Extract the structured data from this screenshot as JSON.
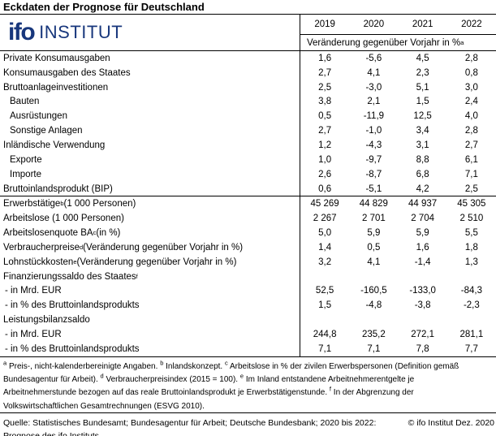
{
  "title": "Eckdaten der Prognose für Deutschland",
  "logo": {
    "brand": "ifo",
    "suffix": "INSTITUT",
    "color": "#18377C"
  },
  "table": {
    "years": [
      "2019",
      "2020",
      "2021",
      "2022"
    ],
    "unit_note": "Veränderung gegenüber Vorjahr in %^a",
    "rows": [
      {
        "label": "Private Konsumausgaben",
        "indent": 0,
        "values": [
          "1,6",
          "-5,6",
          "4,5",
          "2,8"
        ]
      },
      {
        "label": "Konsumausgaben des Staates",
        "indent": 0,
        "values": [
          "2,7",
          "4,1",
          "2,3",
          "0,8"
        ]
      },
      {
        "label": "Bruttoanlageinvestitionen",
        "indent": 0,
        "values": [
          "2,5",
          "-3,0",
          "5,1",
          "3,0"
        ]
      },
      {
        "label": "Bauten",
        "indent": 1,
        "values": [
          "3,8",
          "2,1",
          "1,5",
          "2,4"
        ]
      },
      {
        "label": "Ausrüstungen",
        "indent": 1,
        "values": [
          "0,5",
          "-11,9",
          "12,5",
          "4,0"
        ]
      },
      {
        "label": "Sonstige Anlagen",
        "indent": 1,
        "values": [
          "2,7",
          "-1,0",
          "3,4",
          "2,8"
        ]
      },
      {
        "label": "Inländische Verwendung",
        "indent": 0,
        "values": [
          "1,2",
          "-4,3",
          "3,1",
          "2,7"
        ]
      },
      {
        "label": "Exporte",
        "indent": 1,
        "values": [
          "1,0",
          "-9,7",
          "8,8",
          "6,1"
        ]
      },
      {
        "label": "Importe",
        "indent": 1,
        "values": [
          "2,6",
          "-8,7",
          "6,8",
          "7,1"
        ]
      },
      {
        "label": "Bruttoinlandsprodukt (BIP)",
        "indent": 0,
        "values": [
          "0,6",
          "-5,1",
          "4,2",
          "2,5"
        ],
        "rule_below": true
      },
      {
        "label": "Erwerbstätige^b (1 000 Personen)",
        "indent": 0,
        "values": [
          "45 269",
          "44 829",
          "44 937",
          "45 305"
        ]
      },
      {
        "label": "Arbeitslose (1 000 Personen)",
        "indent": 0,
        "values": [
          "2 267",
          "2 701",
          "2 704",
          "2 510"
        ]
      },
      {
        "label": "Arbeitslosenquote BA^c (in %)",
        "indent": 0,
        "values": [
          "5,0",
          "5,9",
          "5,9",
          "5,5"
        ]
      },
      {
        "label": "Verbraucherpreise^d (Veränderung gegenüber Vorjahr in %)",
        "indent": 0,
        "values": [
          "1,4",
          "0,5",
          "1,6",
          "1,8"
        ]
      },
      {
        "label": "Lohnstückkosten^e (Veränderung gegenüber Vorjahr in %)",
        "indent": 0,
        "values": [
          "3,2",
          "4,1",
          "-1,4",
          "1,3"
        ]
      },
      {
        "label": "Finanzierungssaldo des Staates^f",
        "indent": 0,
        "values": [
          "",
          "",
          "",
          ""
        ]
      },
      {
        "label": "- in Mrd. EUR",
        "indent": 2,
        "values": [
          "52,5",
          "-160,5",
          "-133,0",
          "-84,3"
        ]
      },
      {
        "label": "- in % des Bruttoinlandsprodukts",
        "indent": 2,
        "values": [
          "1,5",
          "-4,8",
          "-3,8",
          "-2,3"
        ]
      },
      {
        "label": "Leistungsbilanzsaldo",
        "indent": 0,
        "values": [
          "",
          "",
          "",
          ""
        ]
      },
      {
        "label": "- in Mrd. EUR",
        "indent": 2,
        "values": [
          "244,8",
          "235,2",
          "272,1",
          "281,1"
        ]
      },
      {
        "label": "- in % des Bruttoinlandsprodukts",
        "indent": 2,
        "values": [
          "7,1",
          "7,1",
          "7,8",
          "7,7"
        ]
      }
    ]
  },
  "footnotes": "^a Preis-, nicht-kalenderbereinigte Angaben. ^b Inlandskonzept. ^c Arbeitslose in % der zivilen Erwerbspersonen (Definition gemäß Bundesagentur für Arbeit). ^d Verbraucherpreisindex (2015 = 100). ^e Im Inland entstandene Arbeitnehmerentgelte je Arbeitnehmerstunde bezogen auf das reale Bruttoinlandsprodukt je Erwerbstätigenstunde. ^f In der Abgrenzung der Volkswirtschaftlichen Gesamtrechnungen (ESVG 2010).",
  "source": {
    "left": "Quelle: Statistisches Bundesamt; Bundesagentur für Arbeit; Deutsche Bundesbank; 2020 bis 2022: Prognose des ifo Instituts.",
    "right": "© ifo Institut Dez. 2020"
  }
}
